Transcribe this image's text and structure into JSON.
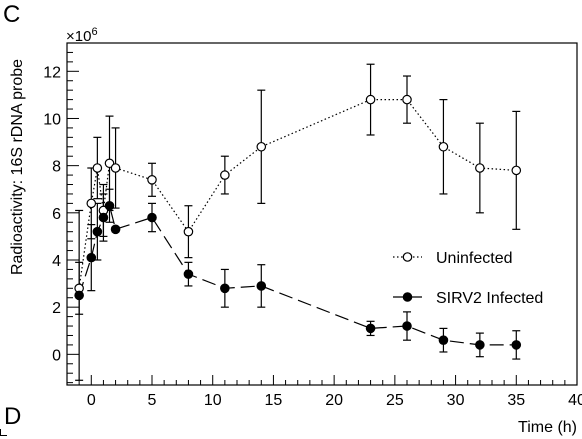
{
  "panel_labels": {
    "top": "C",
    "bottom": "D"
  },
  "chart_data": {
    "type": "scatter",
    "title": "",
    "xlabel": "Time (h)",
    "ylabel": "Radioactivity: 16S rDNA probe",
    "y_multiplier": "×10",
    "y_multiplier_exp": "6",
    "xlim": [
      -2,
      40
    ],
    "ylim": [
      -1.3,
      13.2
    ],
    "x_ticks": [
      0,
      5,
      10,
      15,
      20,
      25,
      30,
      35,
      40
    ],
    "y_ticks": [
      0,
      2,
      4,
      6,
      8,
      10,
      12
    ],
    "grid": false,
    "legend_position": "right-middle",
    "series": [
      {
        "name": "Uninfected",
        "marker": "open-circle",
        "line_style": "dotted",
        "color": "#000000",
        "x": [
          -1,
          0,
          0.5,
          1,
          1.5,
          2,
          5,
          8,
          11,
          14,
          23,
          26,
          29,
          32,
          35
        ],
        "y": [
          2.8,
          6.4,
          7.9,
          6.1,
          8.1,
          7.9,
          7.4,
          5.2,
          7.6,
          8.8,
          10.8,
          10.8,
          8.8,
          7.9,
          7.8
        ],
        "y_error": [
          1.1,
          1.5,
          1.3,
          1.1,
          2.0,
          1.7,
          0.7,
          1.1,
          0.8,
          2.4,
          1.5,
          1.0,
          2.0,
          1.9,
          2.5
        ]
      },
      {
        "name": "SIRV2 Infected",
        "marker": "filled-circle",
        "line_style": "dashed",
        "color": "#000000",
        "x": [
          -1,
          0,
          0.5,
          1,
          1.5,
          2,
          5,
          8,
          11,
          14,
          23,
          26,
          29,
          32,
          35
        ],
        "y": [
          2.5,
          4.1,
          5.2,
          5.8,
          6.3,
          5.3,
          5.8,
          3.4,
          2.8,
          2.9,
          1.1,
          1.2,
          0.6,
          0.4,
          0.4
        ],
        "y_error": [
          3.6,
          1.4,
          1.2,
          1.0,
          0.7,
          0.1,
          0.6,
          0.5,
          0.8,
          0.9,
          0.3,
          0.6,
          0.5,
          0.5,
          0.6
        ]
      }
    ]
  }
}
